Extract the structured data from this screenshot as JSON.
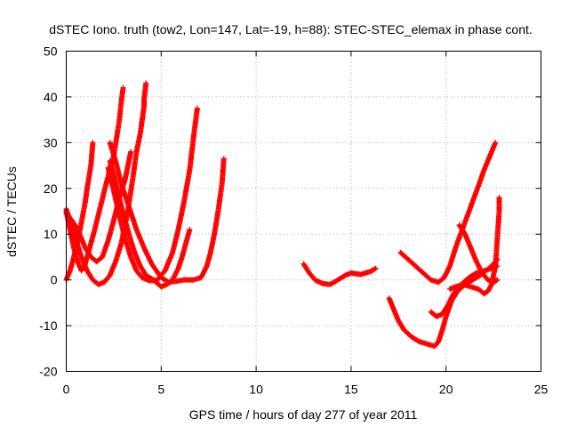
{
  "chart_data": {
    "type": "scatter",
    "title": "dSTEC Iono. truth (tow2, Lon=147, Lat=-19, h=88): STEC-STEC_elemax in phase cont.",
    "xlabel": "GPS time / hours of day 277 of year 2011",
    "ylabel": "dSTEC  / TECUs",
    "xlim": [
      0,
      25
    ],
    "ylim": [
      -20,
      50
    ],
    "xticks": [
      0,
      5,
      10,
      15,
      20,
      25
    ],
    "yticks": [
      -20,
      -10,
      0,
      10,
      20,
      30,
      40,
      50
    ],
    "x_tick_labels": [
      "0",
      "5",
      "10",
      "15",
      "20",
      "25"
    ],
    "y_tick_labels": [
      "-20",
      "-10",
      "0",
      "10",
      "20",
      "30",
      "40",
      "50"
    ],
    "grid": true,
    "legend": "none",
    "marker": "+",
    "color": "#ff0000",
    "series": [
      {
        "points": [
          [
            0.0,
            15.5
          ],
          [
            0.2,
            13
          ],
          [
            0.5,
            9
          ],
          [
            0.8,
            5
          ],
          [
            1.1,
            2
          ],
          [
            1.4,
            0
          ],
          [
            1.7,
            -1
          ],
          [
            2.0,
            -0.5
          ],
          [
            2.3,
            1
          ],
          [
            2.6,
            4
          ],
          [
            2.9,
            8
          ],
          [
            3.2,
            14
          ],
          [
            3.5,
            22
          ],
          [
            3.7,
            28
          ],
          [
            3.9,
            32
          ],
          [
            4.0,
            35
          ],
          [
            4.1,
            38
          ],
          [
            4.1,
            39.5
          ],
          [
            4.2,
            43
          ]
        ]
      },
      {
        "points": [
          [
            0.0,
            0
          ],
          [
            0.2,
            2
          ],
          [
            0.4,
            5
          ],
          [
            0.6,
            8.5
          ],
          [
            0.8,
            12.5
          ],
          [
            1.0,
            17
          ],
          [
            1.1,
            20
          ],
          [
            1.3,
            25
          ],
          [
            1.4,
            30
          ]
        ]
      },
      {
        "points": [
          [
            0.0,
            15
          ],
          [
            0.2,
            11
          ],
          [
            0.4,
            7
          ],
          [
            0.6,
            4
          ],
          [
            0.8,
            2
          ],
          [
            1.0,
            3.5
          ],
          [
            1.2,
            6.5
          ],
          [
            1.5,
            11
          ],
          [
            1.8,
            16
          ],
          [
            2.1,
            21
          ],
          [
            2.5,
            27
          ],
          [
            2.8,
            35
          ],
          [
            2.9,
            39
          ],
          [
            3.0,
            42
          ]
        ]
      },
      {
        "points": [
          [
            0.0,
            14.5
          ],
          [
            0.3,
            13
          ],
          [
            0.6,
            11
          ],
          [
            0.8,
            9
          ],
          [
            1.0,
            7
          ],
          [
            1.3,
            5
          ],
          [
            1.6,
            4
          ],
          [
            1.9,
            5
          ],
          [
            2.2,
            8.5
          ],
          [
            2.5,
            13
          ],
          [
            2.8,
            18
          ],
          [
            3.1,
            22
          ],
          [
            3.3,
            26
          ],
          [
            3.4,
            28
          ]
        ]
      },
      {
        "points": [
          [
            2.3,
            26
          ],
          [
            2.5,
            23
          ],
          [
            2.7,
            19.5
          ],
          [
            3.0,
            14.5
          ],
          [
            3.3,
            10
          ],
          [
            3.6,
            6
          ],
          [
            3.9,
            3
          ],
          [
            4.2,
            1
          ],
          [
            4.6,
            0
          ],
          [
            5.0,
            -1.5
          ],
          [
            5.3,
            -1
          ],
          [
            5.6,
            0
          ],
          [
            5.9,
            2.5
          ],
          [
            6.1,
            5
          ],
          [
            6.3,
            8
          ],
          [
            6.5,
            11
          ]
        ]
      },
      {
        "points": [
          [
            2.3,
            30
          ],
          [
            2.6,
            26
          ],
          [
            2.9,
            21
          ],
          [
            3.3,
            16
          ],
          [
            3.7,
            11
          ],
          [
            4.1,
            7
          ],
          [
            4.5,
            3.5
          ],
          [
            5.0,
            0.5
          ],
          [
            5.4,
            -0.5
          ],
          [
            5.8,
            -0.3
          ],
          [
            6.2,
            0
          ],
          [
            6.7,
            0
          ],
          [
            7.1,
            0.5
          ],
          [
            7.4,
            3
          ],
          [
            7.6,
            6
          ],
          [
            7.8,
            10
          ],
          [
            8.0,
            15
          ],
          [
            8.2,
            21
          ],
          [
            8.3,
            26.5
          ]
        ]
      },
      {
        "points": [
          [
            2.2,
            24.5
          ],
          [
            2.5,
            19.5
          ],
          [
            2.8,
            14
          ],
          [
            3.1,
            9
          ],
          [
            3.4,
            5
          ],
          [
            3.7,
            2
          ],
          [
            4.0,
            0.5
          ],
          [
            4.4,
            -0.2
          ],
          [
            4.8,
            0
          ],
          [
            5.2,
            2
          ],
          [
            5.6,
            6
          ],
          [
            5.9,
            11
          ],
          [
            6.2,
            17
          ],
          [
            6.5,
            24
          ],
          [
            6.7,
            31
          ],
          [
            6.9,
            37.5
          ]
        ]
      },
      {
        "points": [
          [
            12.5,
            3.5
          ],
          [
            12.8,
            1.5
          ],
          [
            13.1,
            0
          ],
          [
            13.5,
            -0.8
          ],
          [
            13.9,
            -1
          ],
          [
            14.3,
            0
          ],
          [
            14.7,
            1
          ],
          [
            15.0,
            1.5
          ],
          [
            15.5,
            1.2
          ],
          [
            16.0,
            1.8
          ],
          [
            16.3,
            2.5
          ]
        ]
      },
      {
        "points": [
          [
            17.0,
            -4
          ],
          [
            17.2,
            -6
          ],
          [
            17.5,
            -9
          ],
          [
            17.8,
            -11
          ],
          [
            18.2,
            -12.5
          ],
          [
            18.6,
            -13.5
          ],
          [
            19.0,
            -14
          ],
          [
            19.4,
            -14.5
          ],
          [
            19.6,
            -13.5
          ],
          [
            19.8,
            -11
          ],
          [
            20.0,
            -8
          ],
          [
            20.3,
            -4.5
          ],
          [
            20.6,
            -2.5
          ],
          [
            21.0,
            -1
          ],
          [
            21.4,
            0
          ],
          [
            21.8,
            1
          ],
          [
            22.1,
            2
          ],
          [
            22.4,
            3
          ],
          [
            22.7,
            4.5
          ]
        ]
      },
      {
        "points": [
          [
            17.6,
            6
          ],
          [
            18.0,
            4.5
          ],
          [
            18.4,
            3
          ],
          [
            18.8,
            1.5
          ],
          [
            19.2,
            0
          ],
          [
            19.6,
            -0.5
          ],
          [
            19.9,
            0.5
          ],
          [
            20.2,
            3
          ],
          [
            20.5,
            7
          ],
          [
            20.9,
            11.5
          ],
          [
            21.3,
            16
          ],
          [
            21.7,
            20.5
          ],
          [
            22.0,
            24
          ],
          [
            22.3,
            27
          ],
          [
            22.6,
            30
          ]
        ]
      },
      {
        "points": [
          [
            19.2,
            -7
          ],
          [
            19.5,
            -8
          ],
          [
            19.8,
            -7.5
          ],
          [
            20.1,
            -5.5
          ],
          [
            20.4,
            -3
          ],
          [
            20.8,
            -1
          ],
          [
            21.2,
            0.5
          ],
          [
            21.6,
            1.5
          ],
          [
            22.0,
            2
          ],
          [
            22.4,
            2.5
          ],
          [
            22.7,
            3
          ]
        ]
      },
      {
        "points": [
          [
            20.7,
            12
          ],
          [
            21.0,
            10
          ],
          [
            21.3,
            7
          ],
          [
            21.6,
            4
          ],
          [
            21.9,
            1.5
          ],
          [
            22.2,
            0
          ],
          [
            22.5,
            -0.5
          ],
          [
            22.7,
            0
          ]
        ]
      },
      {
        "points": [
          [
            20.2,
            -2
          ],
          [
            20.5,
            -1.5
          ],
          [
            20.9,
            -1
          ],
          [
            21.3,
            -1.5
          ],
          [
            21.7,
            -2
          ],
          [
            22.0,
            -3
          ],
          [
            22.2,
            -2.5
          ],
          [
            22.4,
            -1
          ],
          [
            22.6,
            3
          ],
          [
            22.7,
            9
          ],
          [
            22.8,
            15
          ],
          [
            22.8,
            18
          ]
        ]
      }
    ]
  }
}
